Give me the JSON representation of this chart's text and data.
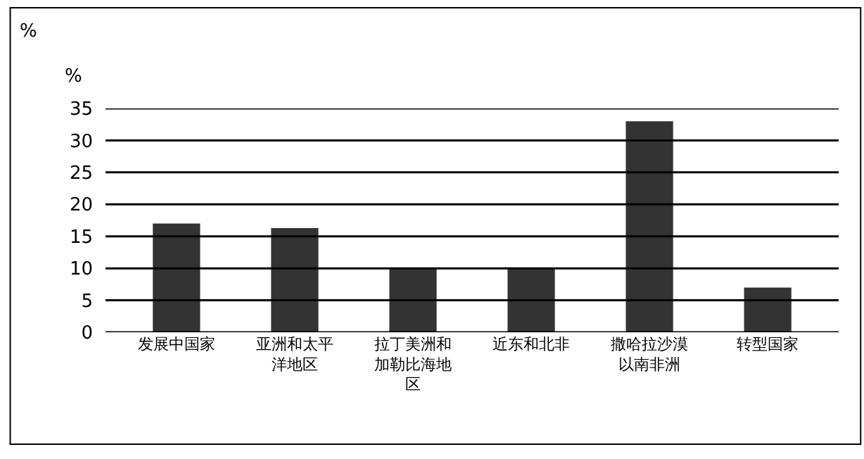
{
  "chart_data": {
    "type": "bar",
    "ylabel": "%",
    "annotations": [
      "%"
    ],
    "categories": [
      "发展中国家",
      "亚洲和太平洋地区",
      "拉丁美洲和加勒比海地区",
      "近东和北非",
      "撒哈拉沙漠以南非洲",
      "转型国家"
    ],
    "values": [
      17,
      16.3,
      10,
      10,
      33,
      7
    ],
    "color": "#333333",
    "ylim": [
      0,
      35
    ],
    "yticks": [
      0,
      5,
      10,
      15,
      20,
      25,
      30,
      35
    ],
    "grid": "y",
    "legend": false
  }
}
